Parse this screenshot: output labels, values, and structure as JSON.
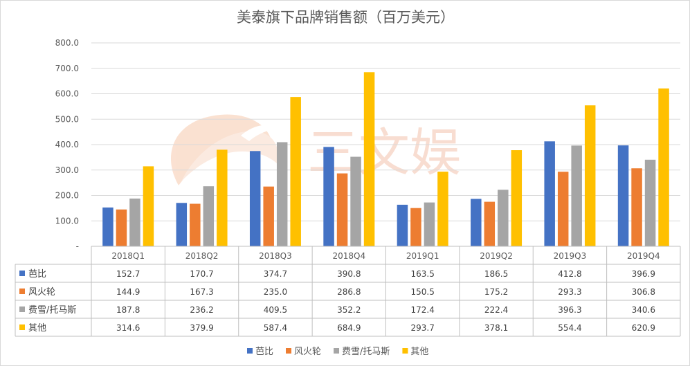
{
  "chart_data": {
    "type": "bar",
    "title": "美泰旗下品牌销售额（百万美元）",
    "categories": [
      "2018Q1",
      "2018Q2",
      "2018Q3",
      "2018Q4",
      "2019Q1",
      "2019Q2",
      "2019Q3",
      "2019Q4"
    ],
    "ylim": [
      0,
      800
    ],
    "yticks": [
      "-",
      "100.0",
      "200.0",
      "300.0",
      "400.0",
      "500.0",
      "600.0",
      "700.0",
      "800.0"
    ],
    "grid": true,
    "legend": "bottom",
    "data_table": true,
    "watermark": "三文娱",
    "series": [
      {
        "name": "芭比",
        "color": "#4472c4",
        "values": [
          152.7,
          170.7,
          374.7,
          390.8,
          163.5,
          186.5,
          412.8,
          396.9
        ],
        "labels": [
          "152.7",
          "170.7",
          "374.7",
          "390.8",
          "163.5",
          "186.5",
          "412.8",
          "396.9"
        ]
      },
      {
        "name": "风火轮",
        "color": "#ed7d31",
        "values": [
          144.9,
          167.3,
          235.0,
          286.8,
          150.5,
          175.2,
          293.3,
          306.8
        ],
        "labels": [
          "144.9",
          "167.3",
          "235.0",
          "286.8",
          "150.5",
          "175.2",
          "293.3",
          "306.8"
        ]
      },
      {
        "name": "费雪/托马斯",
        "color": "#a5a5a5",
        "values": [
          187.8,
          236.2,
          409.5,
          352.2,
          172.4,
          222.4,
          396.3,
          340.6
        ],
        "labels": [
          "187.8",
          "236.2",
          "409.5",
          "352.2",
          "172.4",
          "222.4",
          "396.3",
          "340.6"
        ]
      },
      {
        "name": "其他",
        "color": "#ffc000",
        "values": [
          314.6,
          379.9,
          587.4,
          684.9,
          293.7,
          378.1,
          554.4,
          620.9
        ],
        "labels": [
          "314.6",
          "379.9",
          "587.4",
          "684.9",
          "293.7",
          "378.1",
          "554.4",
          "620.9"
        ]
      }
    ]
  }
}
